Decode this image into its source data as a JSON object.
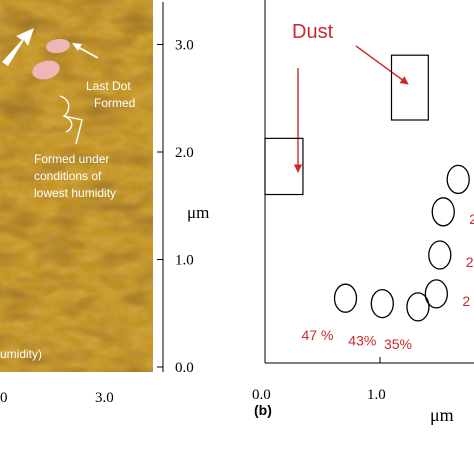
{
  "colors": {
    "afm_dark": "#6e3a05",
    "afm_mid": "#a4670e",
    "afm_light": "#d9b73a",
    "dot": "#eeb7b7",
    "annotation_red": "#cc2a2a"
  },
  "panel_a": {
    "annotations": {
      "last_dot_line1": "Last Dot",
      "last_dot_line2": "Formed",
      "formed_line1": "Formed under",
      "formed_line2": "conditions of",
      "formed_line3": "lowest humidity",
      "humidity": "umidity)"
    },
    "y_axis": {
      "ticks": [
        "0.0",
        "1.0",
        "2.0",
        "3.0"
      ],
      "unit": "μm"
    },
    "x_axis": {
      "ticks": [
        "0",
        "3.0"
      ]
    }
  },
  "panel_b": {
    "label": "(b)",
    "dust_label": "Dust",
    "x_axis": {
      "ticks": [
        "0.0",
        "1.0"
      ],
      "unit": "μm"
    }
  },
  "chart_data": {
    "type": "scatter",
    "x_unit": "μm",
    "y_unit": "μm",
    "xlim": [
      0.0,
      1.8
    ],
    "ylim": [
      0.0,
      3.3
    ],
    "dots": [
      {
        "x": 0.7,
        "y": 0.6,
        "label": "47 %"
      },
      {
        "x": 1.02,
        "y": 0.55,
        "label": "43%"
      },
      {
        "x": 1.33,
        "y": 0.52,
        "label": "35%"
      },
      {
        "x": 1.49,
        "y": 0.64,
        "label": "2"
      },
      {
        "x": 1.52,
        "y": 1.0,
        "label": "2"
      },
      {
        "x": 1.55,
        "y": 1.4,
        "label": "2"
      },
      {
        "x": 1.68,
        "y": 1.7,
        "label": ""
      }
    ],
    "dust": [
      {
        "x0": 0.0,
        "x1": 0.33,
        "y0": 1.56,
        "y1": 2.08
      },
      {
        "x0": 1.1,
        "x1": 1.42,
        "y0": 2.25,
        "y1": 2.85
      }
    ]
  }
}
